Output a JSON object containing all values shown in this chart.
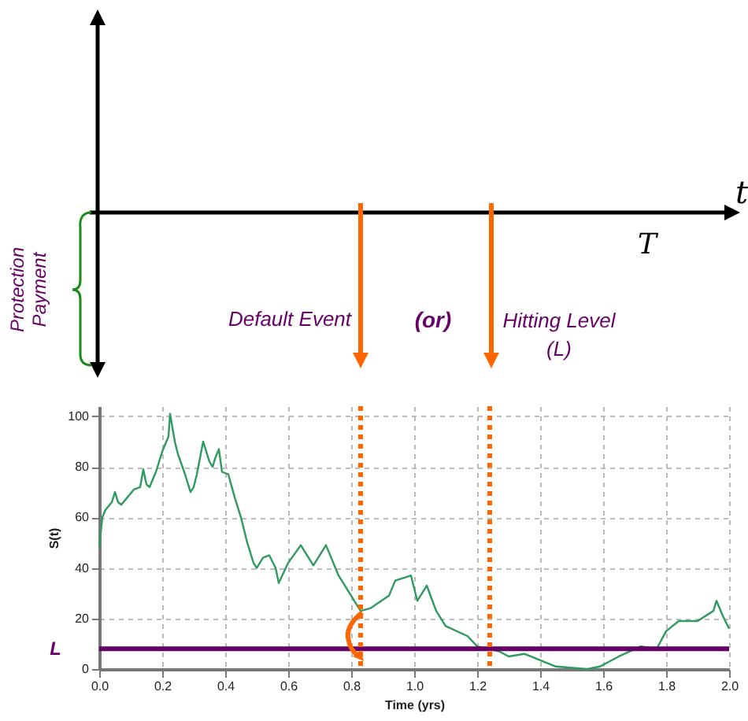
{
  "chart_data": {
    "type": "line",
    "xlabel": "Time (yrs)",
    "ylabel": "S(t)",
    "annotations": [
      "t",
      "T",
      "Protection Payment",
      "Default Event",
      "(or)",
      "Hitting Level (L)"
    ],
    "xlim": [
      0,
      2
    ],
    "ylim": [
      0,
      104
    ],
    "xticks": [
      {
        "value": 0,
        "label": "0.0"
      },
      0.2,
      0.4,
      0.6,
      0.8,
      {
        "value": 1,
        "label": "1.0"
      },
      1.2,
      1.4,
      1.6,
      1.8,
      {
        "value": 2,
        "label": "2.0"
      }
    ],
    "yticks": [
      0,
      20,
      40,
      60,
      80,
      100
    ],
    "grid": true,
    "marker": "none",
    "ref_lines": [
      {
        "axis": "y",
        "value": 8,
        "label": "L",
        "color": "#660066",
        "line_style": "solid"
      },
      {
        "axis": "x",
        "value": 0.83,
        "color": "#ff6600",
        "line_style": "dotted"
      },
      {
        "axis": "x",
        "value": 1.24,
        "color": "#ff6600",
        "line_style": "dotted"
      }
    ],
    "series": [
      {
        "color": "#2e9a5e",
        "line_style": "solid",
        "x": [
          0,
          0.01,
          0.02,
          0.04,
          0.05,
          0.06,
          0.07,
          0.09,
          0.11,
          0.13,
          0.14,
          0.15,
          0.16,
          0.18,
          0.2,
          0.22,
          0.225,
          0.24,
          0.25,
          0.27,
          0.29,
          0.3,
          0.31,
          0.33,
          0.35,
          0.36,
          0.37,
          0.38,
          0.39,
          0.41,
          0.43,
          0.45,
          0.47,
          0.49,
          0.5,
          0.52,
          0.54,
          0.56,
          0.57,
          0.6,
          0.64,
          0.68,
          0.72,
          0.76,
          0.81,
          0.83,
          0.86,
          0.92,
          0.94,
          0.99,
          1.01,
          1.04,
          1.07,
          1.1,
          1.17,
          1.2,
          1.27,
          1.3,
          1.35,
          1.39,
          1.45,
          1.55,
          1.59,
          1.65,
          1.72,
          1.77,
          1.8,
          1.84,
          1.9,
          1.95,
          1.96,
          1.98,
          2.0
        ],
        "values": [
          48,
          60,
          63,
          66,
          70,
          66,
          65,
          68,
          71,
          72,
          79,
          73,
          72,
          78,
          86,
          92,
          101,
          90,
          85,
          78,
          70,
          72,
          77,
          90,
          82,
          80,
          84,
          87,
          78,
          77,
          68,
          60,
          50,
          42,
          40,
          44,
          45,
          40,
          34,
          42,
          49,
          41,
          49,
          37,
          27,
          23,
          24,
          29,
          35,
          37,
          27,
          33,
          23,
          17,
          13,
          9,
          7,
          5,
          6,
          4,
          1,
          0,
          1,
          5,
          9,
          8,
          15,
          19,
          19,
          23,
          27,
          21,
          16
        ]
      }
    ]
  }
}
